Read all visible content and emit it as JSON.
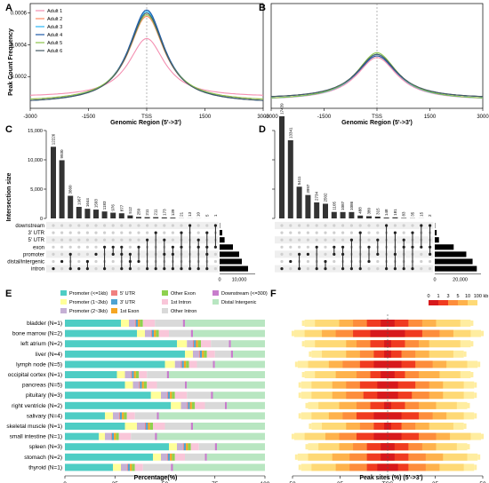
{
  "colors": {
    "adult": [
      "#f48fb1",
      "#ff8a65",
      "#29b6f6",
      "#1e5aa8",
      "#8bc34a",
      "#455a64"
    ],
    "anno": {
      "Promoter (<=1kb)": "#4ecdc4",
      "Promoter (1~2kb)": "#ffff99",
      "Promoter (2~3kb)": "#c5b0d5",
      "5' UTR": "#f08080",
      "3' UTR": "#4fa3d1",
      "1st Exon": "#f5a623",
      "Other Exon": "#8fd14f",
      "1st Intron": "#f9c6d9",
      "Other Intron": "#d9d9d9",
      "Downstream (<=300)": "#c77dcc",
      "Distal Intergenic": "#b8e6c1"
    },
    "heat": [
      "#d7191c",
      "#f03b20",
      "#fd8d3c",
      "#feb24c",
      "#fed976",
      "#ffeda0"
    ]
  },
  "chart_data": [
    {
      "panel": "A",
      "type": "line",
      "title": "",
      "xlabel": "Genomic Region (5'->3')",
      "ylabel": "Peak Count Frequency",
      "xlim": [
        -3000,
        3000
      ],
      "ylim": [
        0,
        0.0006
      ],
      "xticks": [
        "-3000",
        "-1500",
        "TSS",
        "1500",
        "3000"
      ],
      "yticks": [
        "0.0002",
        "0.0004",
        "0.0006"
      ],
      "legend": "top-left",
      "series": [
        {
          "name": "Adult 1",
          "peak": 0.00044,
          "base": 7e-05
        },
        {
          "name": "Adult 2",
          "peak": 0.00058,
          "base": 4e-05
        },
        {
          "name": "Adult 3",
          "peak": 0.00061,
          "base": 3e-05
        },
        {
          "name": "Adult 4",
          "peak": 0.00062,
          "base": 3e-05
        },
        {
          "name": "Adult 5",
          "peak": 0.00059,
          "base": 4e-05
        },
        {
          "name": "Adult 6",
          "peak": 0.0006,
          "base": 3e-05
        }
      ]
    },
    {
      "panel": "B",
      "type": "line",
      "xlabel": "Genomic Region (5'->3')",
      "xlim": [
        -3000,
        3000
      ],
      "xticks": [
        "-3000",
        "-1500",
        "TSS",
        "1500",
        "3000"
      ]
    },
    {
      "panel": "C",
      "type": "bar",
      "ylabel": "Intersection size",
      "yticks": [
        "0",
        "5,000",
        "10,000",
        "15,000"
      ],
      "ylim": [
        0,
        15000
      ],
      "values": [
        12226,
        9930,
        3860,
        1967,
        1644,
        1503,
        1183,
        976,
        877,
        512,
        250,
        211,
        211,
        173,
        139,
        21,
        13,
        10,
        5,
        1
      ],
      "labels": [
        "12226",
        "9930",
        "3860",
        "1967",
        "1644",
        "1503",
        "1183",
        "976",
        "877",
        "512",
        "250",
        "211",
        "211",
        "173",
        "139",
        "21",
        "13",
        "10",
        "5",
        "1"
      ],
      "sets": [
        "downstream",
        "3' UTR",
        "5' UTR",
        "exon",
        "promoter",
        "distal/intergenic",
        "intron"
      ],
      "set_sizes": [
        200,
        1500,
        2800,
        7500,
        11000,
        12500,
        16000
      ],
      "set_ticks": [
        "0",
        "10,000"
      ],
      "set_max": 20000,
      "matrix": [
        [
          6
        ],
        [
          5
        ],
        [
          4,
          6
        ],
        [
          6
        ],
        [
          5,
          6
        ],
        [
          4
        ],
        [
          3,
          6
        ],
        [
          3,
          4
        ],
        [
          3,
          4,
          6
        ],
        [
          4,
          5,
          6
        ],
        [
          3,
          5
        ],
        [
          2,
          6
        ],
        [
          1,
          6
        ],
        [
          2,
          4,
          6
        ],
        [
          3,
          4,
          6
        ],
        [
          1,
          3,
          6
        ],
        [
          0,
          6
        ],
        [
          2,
          3,
          6
        ],
        [
          1,
          3,
          4,
          6
        ],
        [
          0,
          3
        ]
      ]
    },
    {
      "panel": "D",
      "type": "bar",
      "yticks": [
        "0",
        "5,000",
        "10,000",
        "15,000"
      ],
      "ylim": [
        0,
        15000
      ],
      "values": [
        17439,
        13341,
        5411,
        3997,
        2734,
        2502,
        1105,
        1087,
        1086,
        488,
        380,
        315,
        148,
        181,
        83,
        35,
        15,
        2
      ],
      "labels": [
        "17439",
        "13341",
        "5411",
        "3997",
        "2734",
        "2502",
        "1105",
        "1087",
        "1086",
        "488",
        "380",
        "315",
        "148",
        "181",
        "83",
        "35",
        "15",
        "2"
      ],
      "sets": [
        "downstream",
        "3' UTR",
        "5' UTR",
        "exon",
        "promoter",
        "distal/intergenic",
        "intron"
      ],
      "set_sizes": [
        150,
        900,
        2000,
        9000,
        15000,
        18000,
        20000
      ],
      "set_ticks": [
        "0",
        "20,000"
      ],
      "set_max": 22000,
      "matrix": [
        [
          6
        ],
        [
          5
        ],
        [
          4,
          6
        ],
        [
          4
        ],
        [
          3,
          6
        ],
        [
          5,
          6
        ],
        [
          3,
          4
        ],
        [
          3,
          4,
          6
        ],
        [
          2,
          6
        ],
        [
          1,
          6
        ],
        [
          3,
          5
        ],
        [
          2,
          4
        ],
        [
          0,
          6
        ],
        [
          1,
          4,
          6
        ],
        [
          2,
          3,
          6
        ],
        [
          1,
          3,
          6
        ],
        [
          0,
          3
        ],
        [
          0,
          3,
          4
        ]
      ]
    },
    {
      "panel": "E",
      "type": "bar",
      "orientation": "horizontal",
      "stacked": true,
      "xlabel": "Percentage(%)",
      "xticks": [
        "0",
        "25",
        "50",
        "75",
        "100"
      ],
      "xlim": [
        0,
        100
      ],
      "legend": "top",
      "legend_order": [
        "Promoter (<=1kb)",
        "5' UTR",
        "Other Exon",
        "Downstream (<=300)",
        "Promoter (1~2kb)",
        "3' UTR",
        "1st Intron",
        "Distal Intergenic",
        "Promoter (2~3kb)",
        "1st Exon",
        "Other Intron"
      ],
      "categories": [
        "bladder (N=1)",
        "bone marrow (N=2)",
        "left atrium (N=2)",
        "liver (N=4)",
        "lymph node (N=5)",
        "occipital cortex (N=1)",
        "pancreas (N=5)",
        "pituitary (N=3)",
        "right ventricle (N=2)",
        "salivary (N=4)",
        "skeletal muscle (N=1)",
        "small intestine (N=1)",
        "spleen (N=3)",
        "stomach (N=2)",
        "thyroid (N=1)"
      ],
      "series_order": [
        "Promoter (<=1kb)",
        "Promoter (1~2kb)",
        "Promoter (2~3kb)",
        "5' UTR",
        "3' UTR",
        "1st Exon",
        "Other Exon",
        "1st Intron",
        "Other Intron",
        "Downstream (<=300)",
        "Distal Intergenic"
      ],
      "values": [
        [
          28,
          4,
          3,
          0.5,
          1,
          1,
          1.5,
          6,
          14,
          1,
          40
        ],
        [
          36,
          4,
          3,
          0.5,
          1,
          1,
          1.5,
          5,
          11,
          1,
          36
        ],
        [
          56,
          5,
          3,
          0.5,
          1,
          1,
          1.5,
          5,
          9,
          1,
          17
        ],
        [
          60,
          4,
          3,
          0.5,
          1,
          1,
          1.5,
          4,
          8,
          1,
          16
        ],
        [
          50,
          5,
          3,
          0.5,
          1,
          1,
          1.5,
          4,
          8,
          1,
          25
        ],
        [
          26,
          4,
          3,
          0.5,
          1,
          1,
          1.5,
          4,
          10,
          1,
          48
        ],
        [
          30,
          4,
          3,
          0.5,
          1,
          1,
          1.5,
          5,
          14,
          1,
          39
        ],
        [
          43,
          5,
          3,
          0.5,
          1,
          1,
          1.5,
          6,
          12,
          1,
          26
        ],
        [
          53,
          5,
          3,
          0.5,
          1,
          1,
          1.5,
          5,
          10,
          1,
          19
        ],
        [
          20,
          4,
          3,
          0.5,
          1,
          1,
          1.5,
          4,
          11,
          1,
          53
        ],
        [
          30,
          6,
          4,
          0.5,
          1,
          1,
          1.5,
          6,
          13,
          1,
          36
        ],
        [
          17,
          3,
          3,
          0.5,
          1,
          1,
          1.5,
          6,
          12,
          1,
          54
        ],
        [
          52,
          4,
          3,
          0.5,
          1,
          1,
          1.5,
          4,
          8,
          1,
          24
        ],
        [
          44,
          4,
          3,
          0.5,
          1,
          1,
          1.5,
          5,
          10,
          1,
          29
        ],
        [
          24,
          4,
          3,
          0.5,
          1,
          1,
          1.5,
          4,
          14,
          1,
          46
        ]
      ]
    },
    {
      "panel": "F",
      "type": "heatmap",
      "xlabel": "Peak sites (%) (5'->3')",
      "xticks": [
        "50",
        "25",
        "TSS",
        "25",
        "50"
      ],
      "legend_ticks": [
        "0",
        "1",
        "3",
        "5",
        "10",
        "100 kb"
      ],
      "bins_pct": [
        5,
        10,
        15,
        20,
        25,
        30
      ],
      "rows": [
        [
          2,
          6,
          10,
          14,
          21,
          24
        ],
        [
          5,
          10,
          15,
          19,
          24,
          27
        ],
        [
          1,
          5,
          9,
          12,
          21,
          24
        ],
        [
          1,
          4,
          8,
          12,
          19,
          22
        ],
        [
          4,
          8,
          13,
          17,
          23,
          26
        ],
        [
          2,
          5,
          9,
          15,
          21,
          24
        ],
        [
          3,
          8,
          12,
          16,
          22,
          25
        ],
        [
          3,
          7,
          12,
          16,
          22,
          25
        ],
        [
          1,
          5,
          9,
          14,
          20,
          23
        ],
        [
          4,
          9,
          13,
          17,
          22,
          25
        ],
        [
          1,
          4,
          8,
          12,
          19,
          22
        ],
        [
          4,
          9,
          14,
          18,
          24,
          27
        ],
        [
          2,
          6,
          10,
          14,
          20,
          23
        ],
        [
          2,
          6,
          11,
          16,
          23,
          26
        ],
        [
          3,
          6,
          11,
          15,
          22,
          25
        ]
      ]
    }
  ],
  "labels": {
    "A": "A",
    "B": "B",
    "C": "C",
    "D": "D",
    "E": "E",
    "F": "F"
  }
}
